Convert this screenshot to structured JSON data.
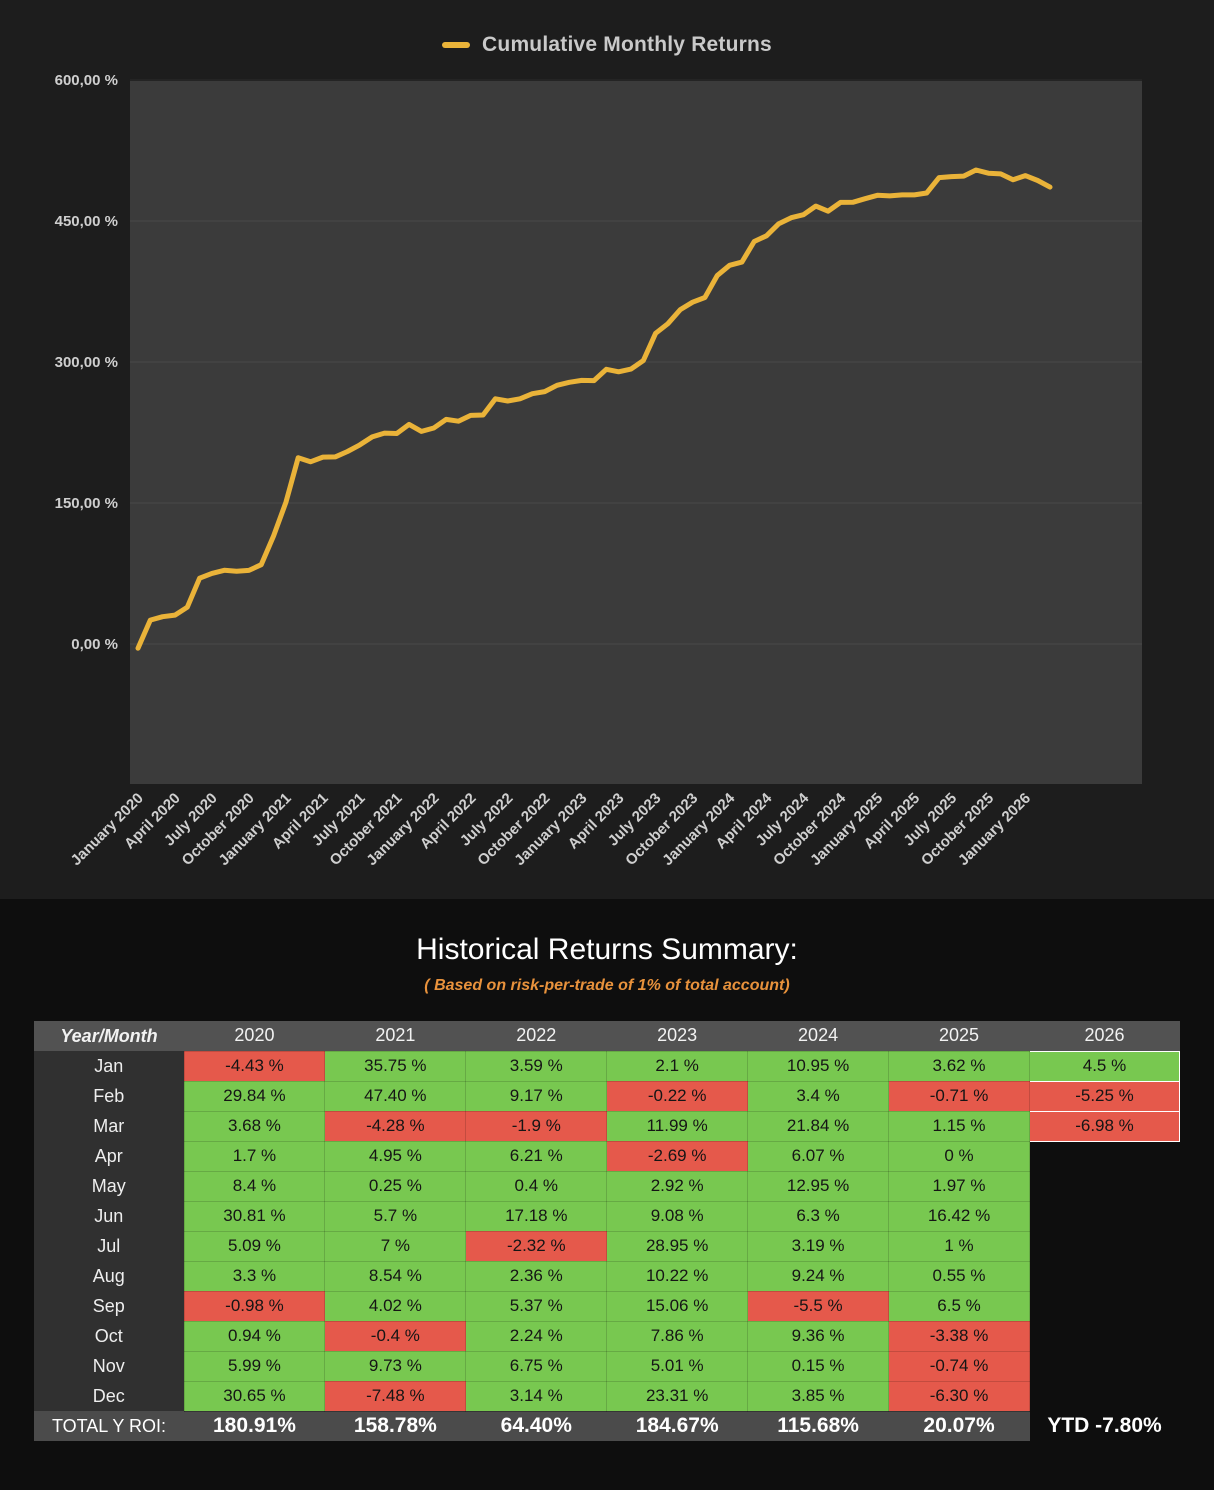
{
  "legend": {
    "label": "Cumulative Monthly Returns",
    "line_color": "#eab339"
  },
  "chart_data": {
    "type": "line",
    "title": "Cumulative Monthly Returns",
    "x_start": "January 2020",
    "x_interval": "monthly",
    "ylim": [
      -150,
      600
    ],
    "yticks": [
      0,
      150,
      300,
      450,
      600
    ],
    "ytick_labels": [
      "0,00 %",
      "150,00 %",
      "300,00 %",
      "450,00 %",
      "600,00 %"
    ],
    "x_tick_labels": [
      "January 2020",
      "April 2020",
      "July 2020",
      "October 2020",
      "January 2021",
      "April 2021",
      "July 2021",
      "October 2021",
      "January 2022",
      "April 2022",
      "July 2022",
      "October 2022",
      "January 2023",
      "April 2023",
      "July 2023",
      "October 2023",
      "January 2024",
      "April 2024",
      "July 2024",
      "October 2024",
      "January 2025",
      "April 2025",
      "July 2025",
      "October 2025",
      "January 2026"
    ],
    "values": [
      -4.43,
      25.41,
      29.09,
      30.79,
      39.19,
      70.0,
      75.09,
      78.39,
      77.41,
      78.35,
      84.34,
      114.99,
      150.74,
      198.14,
      193.86,
      198.81,
      199.06,
      204.76,
      211.76,
      220.3,
      224.32,
      223.92,
      233.65,
      226.17,
      229.76,
      238.93,
      237.03,
      243.24,
      243.64,
      260.82,
      258.5,
      260.86,
      266.23,
      268.47,
      275.22,
      278.36,
      280.46,
      280.24,
      292.23,
      289.54,
      292.46,
      301.54,
      330.49,
      340.71,
      355.77,
      363.63,
      368.64,
      391.95,
      402.9,
      406.3,
      428.14,
      434.21,
      447.16,
      453.46,
      456.65,
      465.89,
      460.39,
      469.75,
      469.9,
      473.75,
      477.37,
      476.66,
      477.81,
      477.81,
      479.78,
      496.2,
      497.2,
      497.75,
      504.25,
      500.87,
      500.13,
      493.83,
      498.33,
      493.08,
      486.1
    ],
    "line_color": "#eab339",
    "plot_bg": "#3b3b3b",
    "grid": true,
    "legend_position": "top"
  },
  "summary": {
    "title": "Historical Returns Summary:",
    "subtitle": "( Based on risk-per-trade of 1% of total account)"
  },
  "table": {
    "header": [
      "Year/Month",
      "2020",
      "2021",
      "2022",
      "2023",
      "2024",
      "2025",
      "2026"
    ],
    "rows": [
      {
        "month": "Jan",
        "values": [
          "-4.43 %",
          "35.75 %",
          "3.59 %",
          "2.1 %",
          "10.95 %",
          "3.62 %",
          "4.5 %"
        ]
      },
      {
        "month": "Feb",
        "values": [
          "29.84 %",
          "47.40 %",
          "9.17 %",
          "-0.22 %",
          "3.4 %",
          "-0.71 %",
          "-5.25 %"
        ]
      },
      {
        "month": "Mar",
        "values": [
          "3.68 %",
          "-4.28 %",
          "-1.9 %",
          "11.99 %",
          "21.84 %",
          "1.15 %",
          "-6.98 %"
        ]
      },
      {
        "month": "Apr",
        "values": [
          "1.7 %",
          "4.95 %",
          "6.21 %",
          "-2.69 %",
          "6.07 %",
          "0 %",
          ""
        ]
      },
      {
        "month": "May",
        "values": [
          "8.4 %",
          "0.25 %",
          "0.4 %",
          "2.92 %",
          "12.95 %",
          "1.97 %",
          ""
        ]
      },
      {
        "month": "Jun",
        "values": [
          "30.81 %",
          "5.7 %",
          "17.18 %",
          "9.08 %",
          "6.3 %",
          "16.42 %",
          ""
        ]
      },
      {
        "month": "Jul",
        "values": [
          "5.09 %",
          "7 %",
          "-2.32 %",
          "28.95 %",
          "3.19 %",
          "1 %",
          ""
        ]
      },
      {
        "month": "Aug",
        "values": [
          "3.3 %",
          "8.54 %",
          "2.36 %",
          "10.22 %",
          "9.24 %",
          "0.55 %",
          ""
        ]
      },
      {
        "month": "Sep",
        "values": [
          "-0.98 %",
          "4.02 %",
          "5.37 %",
          "15.06 %",
          "-5.5 %",
          "6.5 %",
          ""
        ]
      },
      {
        "month": "Oct",
        "values": [
          "0.94 %",
          "-0.4 %",
          "2.24 %",
          "7.86 %",
          "9.36 %",
          "-3.38 %",
          ""
        ]
      },
      {
        "month": "Nov",
        "values": [
          "5.99 %",
          "9.73 %",
          "6.75 %",
          "5.01 %",
          "0.15 %",
          "-0.74 %",
          ""
        ]
      },
      {
        "month": "Dec",
        "values": [
          "30.65 %",
          "-7.48 %",
          "3.14 %",
          "23.31 %",
          "3.85 %",
          "-6.30 %",
          ""
        ]
      }
    ],
    "total_label": "TOTAL Y ROI:",
    "totals": [
      "180.91%",
      "158.78%",
      "64.40%",
      "184.67%",
      "115.68%",
      "20.07%",
      "YTD -7.80%"
    ]
  },
  "colors": {
    "positive": "#78c850",
    "negative": "#e5594b",
    "accent_line": "#eab339",
    "subtitle_orange": "#e8923c"
  }
}
